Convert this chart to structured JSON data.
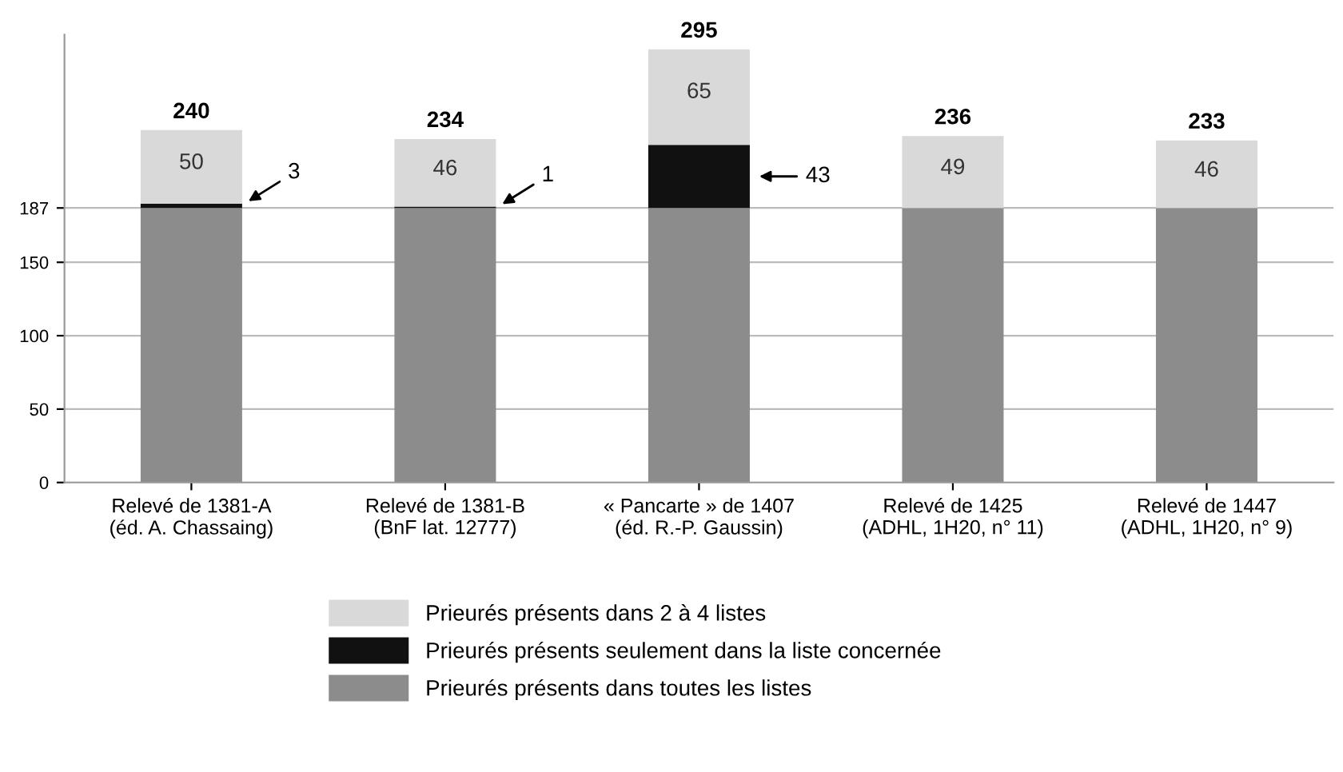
{
  "chart_data": {
    "type": "bar",
    "stacked": true,
    "categories": [
      "Relevé de 1381-A\n(éd. A. Chassaing)",
      "Relevé de 1381-B\n(BnF lat. 12777)",
      "« Pancarte » de 1407\n(éd. R.-P. Gaussin)",
      "Relevé de 1425\n(ADHL, 1H20, n° 11)",
      "Relevé de 1447\n(ADHL, 1H20, n° 9)"
    ],
    "series": [
      {
        "name": "Prieurés présents dans toutes les listes",
        "color": "#8c8c8c",
        "values": [
          187,
          187,
          187,
          187,
          187
        ]
      },
      {
        "name": "Prieurés présents seulement dans la liste concernée",
        "color": "#111111",
        "values": [
          3,
          1,
          43,
          0,
          0
        ],
        "value_labels": [
          "3",
          "1",
          "43",
          null,
          null
        ]
      },
      {
        "name": "Prieurés présents dans 2 à 4 listes",
        "color": "#d9d9d9",
        "values": [
          50,
          46,
          65,
          49,
          46
        ],
        "value_labels": [
          "50",
          "46",
          "65",
          "49",
          "46"
        ]
      }
    ],
    "totals": [
      "240",
      "234",
      "295",
      "236",
      "233"
    ],
    "ylim": [
      0,
      305
    ],
    "yticks": [
      0,
      50,
      100,
      150,
      187
    ],
    "grid": "y",
    "legend": "bottom"
  }
}
